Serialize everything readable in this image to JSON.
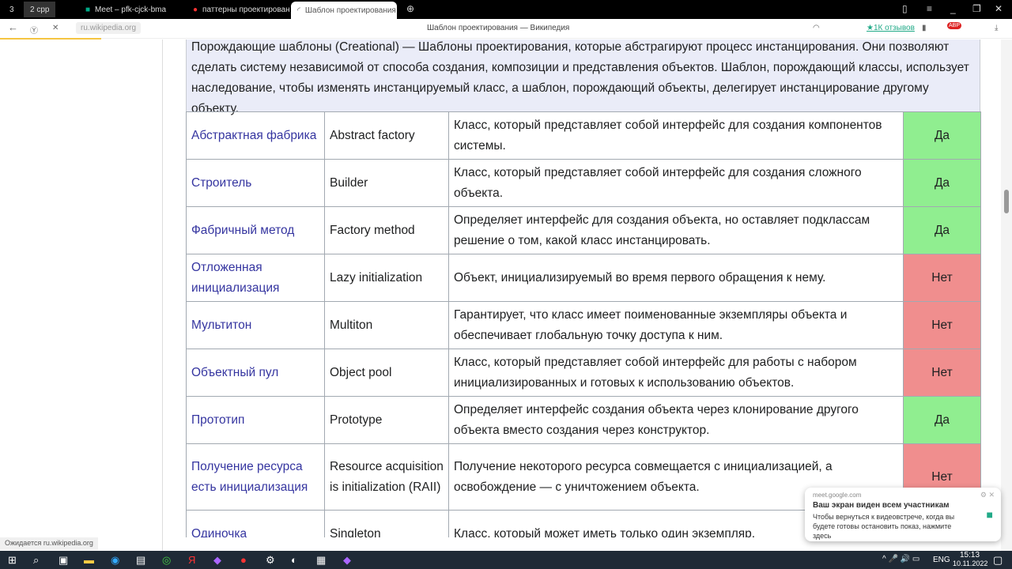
{
  "tabs": [
    {
      "label": "3"
    },
    {
      "label": "2 cpp"
    },
    {
      "label": "Meet – pfk-cjck-bma"
    },
    {
      "label": "паттерны проектирования"
    },
    {
      "label": "Шаблон проектирования"
    }
  ],
  "address": {
    "url": "ru.wikipedia.org",
    "title": "Шаблон проектирования — Википедия",
    "reviews": "★1К отзывов",
    "abp": "ABP"
  },
  "intro": "Порождающие шаблоны (Creational) — Шаблоны проектирования, которые абстрагируют процесс инстанцирования. Они позволяют сделать систему независимой от способа создания, композиции и представления объектов. Шаблон, порождающий классы, использует наследование, чтобы изменять инстанцируемый класс, а шаблон, порождающий объекты, делегирует инстанцирование другому объекту.",
  "rows": [
    {
      "ru": "Абстрактная фабрика",
      "en": "Abstract factory",
      "desc": "Класс, который представляет собой интерфейс для создания компонентов системы.",
      "flag": "Да"
    },
    {
      "ru": "Строитель",
      "en": "Builder",
      "desc": "Класс, который представляет собой интерфейс для создания сложного объекта.",
      "flag": "Да"
    },
    {
      "ru": "Фабричный метод",
      "en": "Factory method",
      "desc": "Определяет интерфейс для создания объекта, но оставляет подклассам решение о том, какой класс инстанцировать.",
      "flag": "Да"
    },
    {
      "ru": "Отложенная инициализация",
      "en": "Lazy initialization",
      "desc": "Объект, инициализируемый во время первого обращения к нему.",
      "flag": "Нет"
    },
    {
      "ru": "Мультитон",
      "en": "Multiton",
      "desc": "Гарантирует, что класс имеет поименованные экземпляры объекта и обеспечивает глобальную точку доступа к ним.",
      "flag": "Нет"
    },
    {
      "ru": "Объектный пул",
      "en": "Object pool",
      "desc": "Класс, который представляет собой интерфейс для работы с набором инициализированных и готовых к использованию объектов.",
      "flag": "Нет"
    },
    {
      "ru": "Прототип",
      "en": "Prototype",
      "desc": "Определяет интерфейс создания объекта через клонирование другого объекта вместо создания через конструктор.",
      "flag": "Да"
    },
    {
      "ru": "Получение ресурса есть инициализация",
      "en": "Resource acquisition is initialization (RAII)",
      "desc": "Получение некоторого ресурса совмещается с инициализацией, а освобождение — с уничтожением объекта.",
      "flag": "Нет"
    },
    {
      "ru": "Одиночка",
      "en": "Singleton",
      "desc": "Класс, который может иметь только один экземпляр.",
      "flag": ""
    }
  ],
  "status": "Ожидается ru.wikipedia.org",
  "notification": {
    "source": "meet.google.com",
    "title": "Ваш экран виден всем участникам",
    "body": "Чтобы вернуться к видеовстрече, когда вы будете готовы остановить показ, нажмите здесь"
  },
  "taskbar": {
    "lang": "ENG",
    "time": "15:13",
    "date": "10.11.2022"
  },
  "colors": {
    "yes": "#90ee90",
    "no": "#f08e8e",
    "link": "#3535a0"
  }
}
